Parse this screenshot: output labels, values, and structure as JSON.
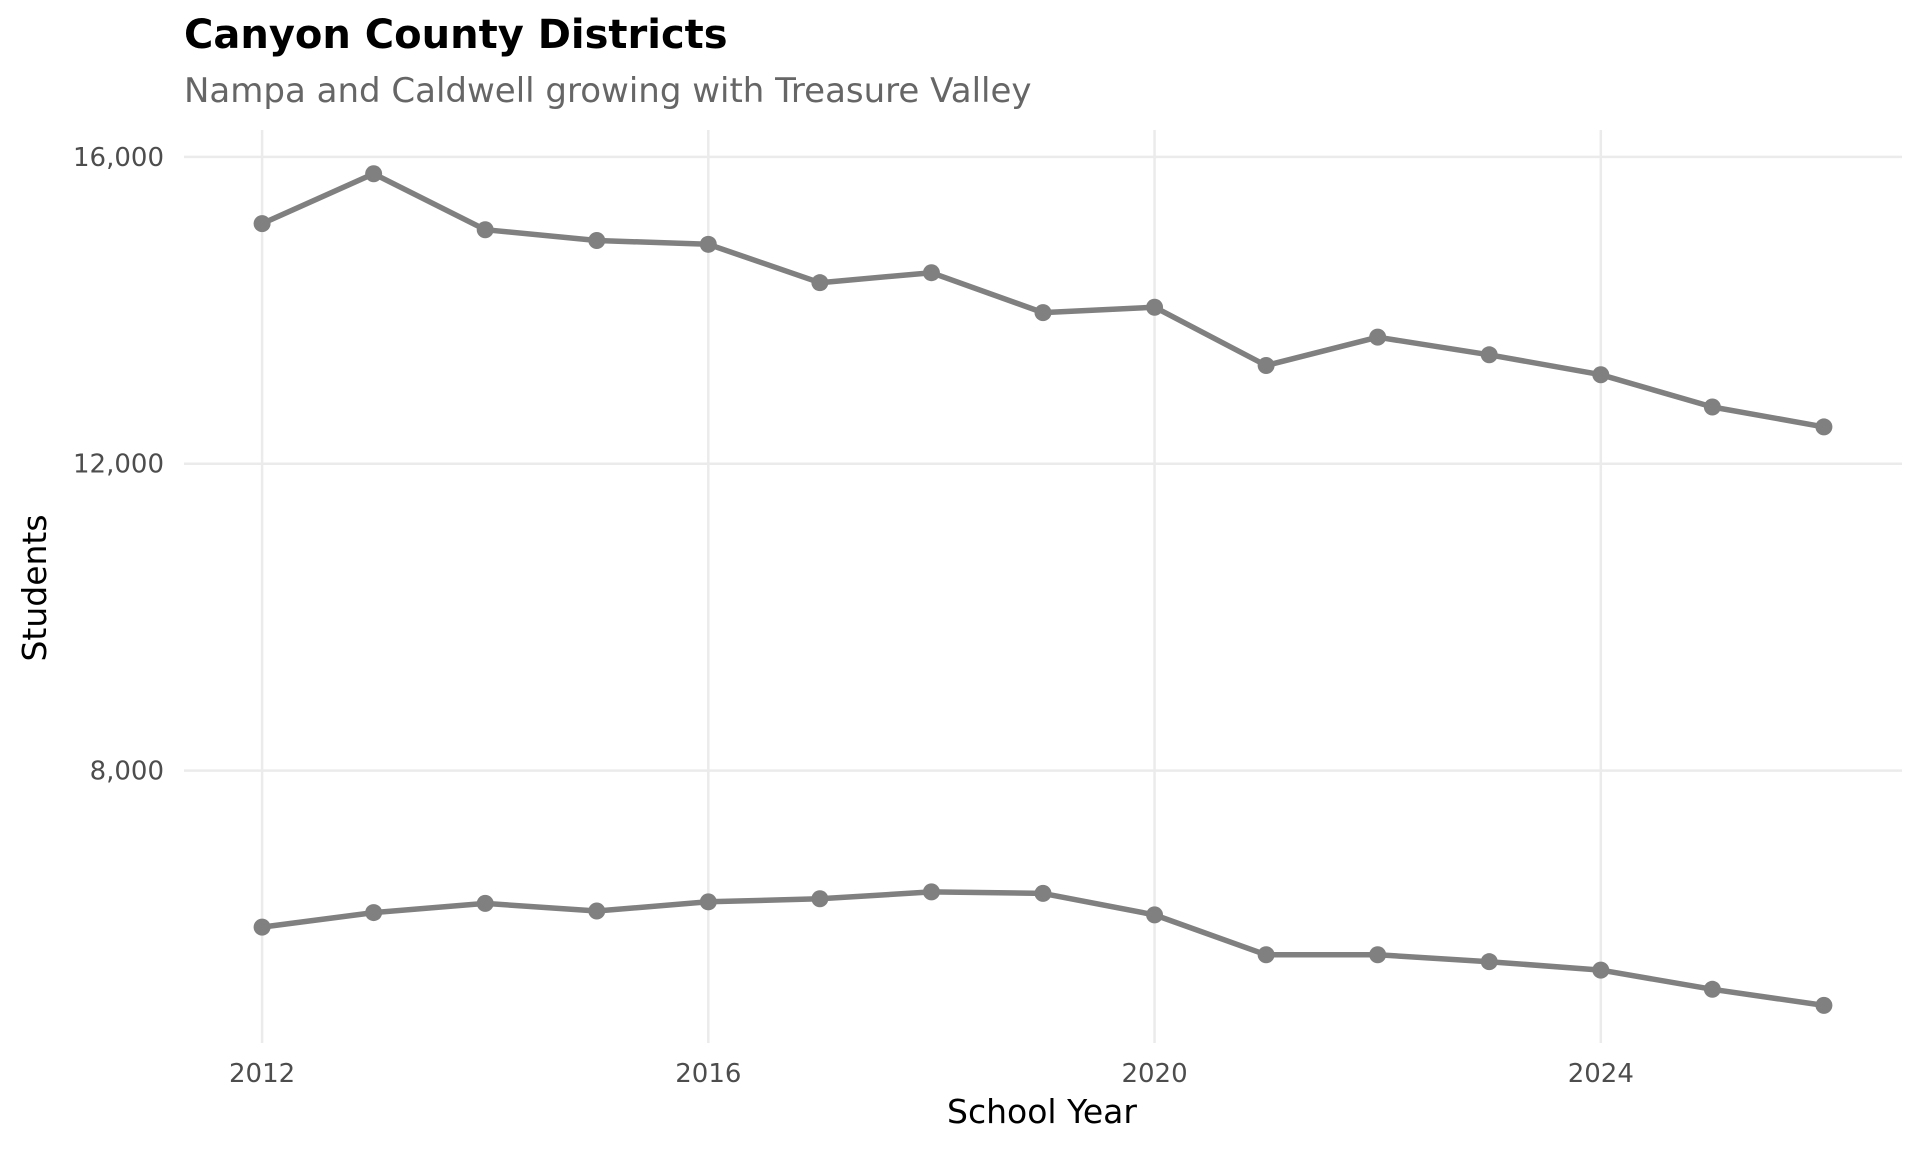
{
  "chart_data": {
    "type": "line",
    "title": "Canyon County Districts",
    "subtitle": "Nampa and Caldwell growing with Treasure Valley",
    "xlabel": "School Year",
    "ylabel": "Students",
    "xlim": [
      2011.3,
      2026.7
    ],
    "ylim": [
      4450,
      16350
    ],
    "x_ticks": [
      2012,
      2016,
      2020,
      2024
    ],
    "y_ticks": [
      8000,
      12000,
      16000
    ],
    "y_tick_labels": [
      "8,000",
      "12,000",
      "16,000"
    ],
    "grid": true,
    "legend": "none",
    "line_color": "#808080",
    "x": [
      2012,
      2013,
      2014,
      2015,
      2016,
      2017,
      2018,
      2019,
      2020,
      2021,
      2022,
      2023,
      2024,
      2025,
      2026
    ],
    "series": [
      {
        "values": [
          15130,
          15780,
          15050,
          14910,
          14860,
          14360,
          14490,
          13970,
          14040,
          13280,
          13650,
          13420,
          13160,
          12740,
          12480
        ]
      },
      {
        "values": [
          5960,
          6150,
          6270,
          6170,
          6290,
          6330,
          6420,
          6400,
          6120,
          5600,
          5600,
          5510,
          5400,
          5150,
          4940
        ]
      }
    ]
  }
}
